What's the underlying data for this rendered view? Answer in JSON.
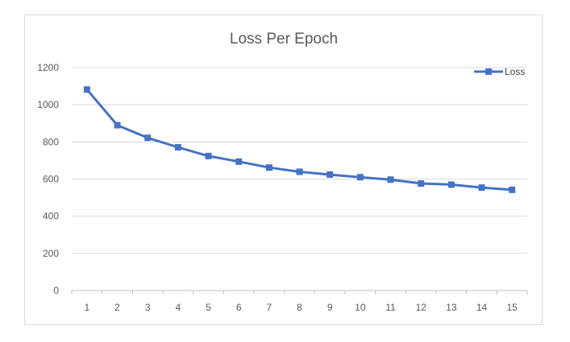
{
  "chart_data": {
    "type": "line",
    "title": "Loss Per Epoch",
    "xlabel": "",
    "ylabel": "",
    "categories": [
      "1",
      "2",
      "3",
      "4",
      "5",
      "6",
      "7",
      "8",
      "9",
      "10",
      "11",
      "12",
      "13",
      "14",
      "15"
    ],
    "series": [
      {
        "name": "Loss",
        "values": [
          1082,
          890,
          822,
          771,
          724,
          694,
          662,
          639,
          624,
          610,
          597,
          576,
          570,
          554,
          542
        ]
      }
    ],
    "ylim": [
      0,
      1200
    ],
    "yticks": [
      0,
      200,
      400,
      600,
      800,
      1000,
      1200
    ],
    "grid": true,
    "legend_position": "top-right",
    "colors": {
      "series": "#4472c4",
      "grid": "#d9d9d9",
      "axis": "#bfbfbf",
      "text": "#595959"
    }
  }
}
